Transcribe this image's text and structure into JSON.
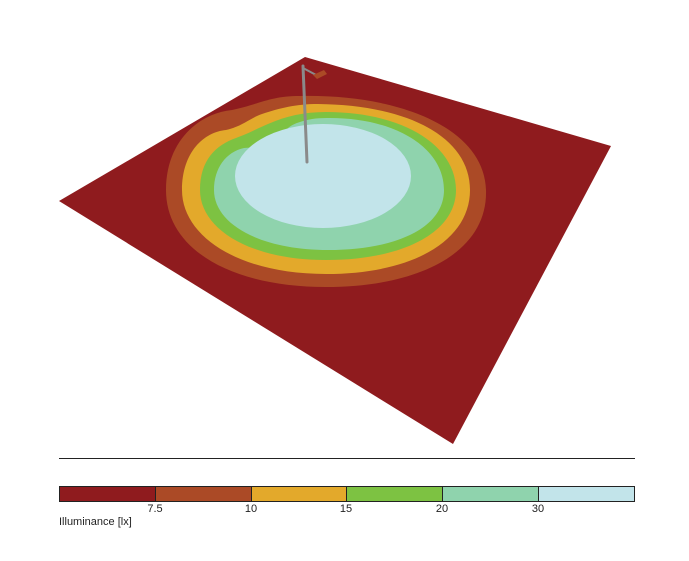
{
  "legend": {
    "title": "Illuminance [lx]",
    "bands": [
      {
        "color": "#8f1b1e"
      },
      {
        "color": "#ab4a26"
      },
      {
        "color": "#e3a92b"
      },
      {
        "color": "#7dc242"
      },
      {
        "color": "#8fd3ad"
      },
      {
        "color": "#c2e4ea"
      }
    ],
    "thresholds": [
      "7.5",
      "10",
      "15",
      "20",
      "30"
    ]
  },
  "scene": {
    "ground_color": "#8f1b1e",
    "pole_color": "#8a8a8a"
  }
}
